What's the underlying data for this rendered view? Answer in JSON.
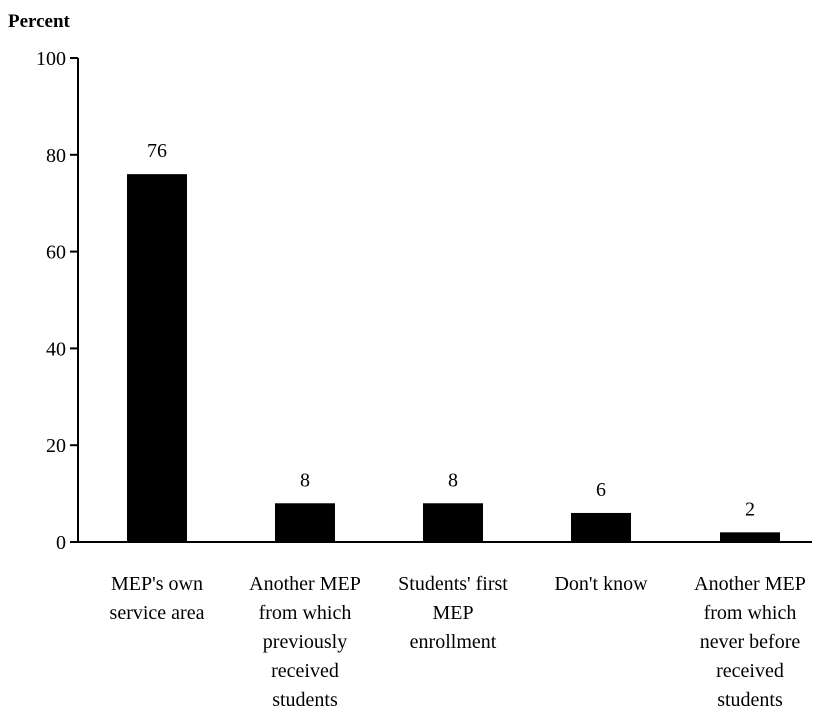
{
  "chart_data": {
    "type": "bar",
    "ylabel": "Percent",
    "xlabel": "",
    "title": "",
    "ylim": [
      0,
      100
    ],
    "yticks": [
      0,
      20,
      40,
      60,
      80,
      100
    ],
    "grid": false,
    "legend": "none",
    "bar_color": "#000000",
    "categories": [
      [
        "MEP's own",
        "service area"
      ],
      [
        "Another MEP",
        "from which",
        "previously",
        "received",
        "students"
      ],
      [
        "Students' first",
        "MEP",
        "enrollment"
      ],
      [
        "Don't know"
      ],
      [
        "Another MEP",
        "from which",
        "never before",
        "received",
        "students"
      ]
    ],
    "values": [
      76,
      8,
      8,
      6,
      2
    ],
    "data_labels": [
      "76",
      "8",
      "8",
      "6",
      "2"
    ]
  }
}
